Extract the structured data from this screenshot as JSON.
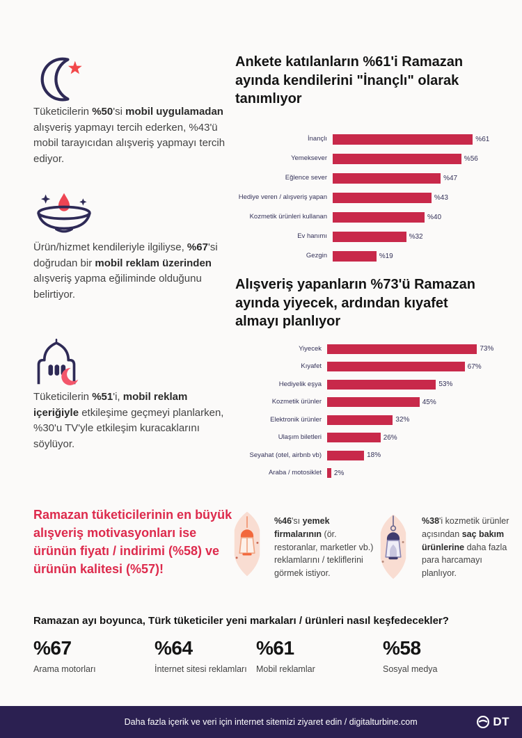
{
  "page": {
    "background": "#fbfaf9",
    "accent_red": "#c8294a",
    "navy": "#2e2a56",
    "highlight_red": "#dd2a4c"
  },
  "left_blocks": [
    {
      "icon": "crescent-star-icon",
      "segments": [
        {
          "text": "Tüketicilerin ",
          "bold": false
        },
        {
          "text": "%50",
          "bold": true
        },
        {
          "text": "'si ",
          "bold": false
        },
        {
          "text": "mobil uygulamadan",
          "bold": true
        },
        {
          "text": " alışveriş yapmayı tercih ederken, %43'ü mobil tarayıcıdan alışveriş yapmayı tercih ediyor.",
          "bold": false
        }
      ]
    },
    {
      "icon": "oil-lamp-icon",
      "segments": [
        {
          "text": "Ürün/hizmet kendileriyle ilgiliyse, ",
          "bold": false
        },
        {
          "text": "%67",
          "bold": true
        },
        {
          "text": "'si doğrudan bir ",
          "bold": false
        },
        {
          "text": "mobil reklam üzerinden",
          "bold": true
        },
        {
          "text": " alışveriş yapma eğiliminde olduğunu belirtiyor.",
          "bold": false
        }
      ]
    },
    {
      "icon": "mosque-icon",
      "segments": [
        {
          "text": "Tüketicilerin ",
          "bold": false
        },
        {
          "text": "%51",
          "bold": true
        },
        {
          "text": "'i, ",
          "bold": false
        },
        {
          "text": "mobil reklam içeriğiyle",
          "bold": true
        },
        {
          "text": " etkileşime geçmeyi planlarken, %30'u TV'yle etkileşim kuracaklarını söylüyor.",
          "bold": false
        }
      ]
    }
  ],
  "highlight": {
    "text": "Ramazan tüketicilerinin en büyük alışveriş motivasyonları ise ürünün fiyatı / indirimi (%58) ve ürünün kalitesi (%57)!"
  },
  "chart_data": [
    {
      "type": "bar",
      "orientation": "horizontal",
      "title": "Ankete katılanların %61'i Ramazan ayında kendilerini \"İnançlı\" olarak tanımlıyor",
      "categories": [
        "İnançlı",
        "Yemeksever",
        "Eğlence sever",
        "Hediye veren / alışveriş yapan",
        "Kozmetik ürünleri kullanan",
        "Ev hanımı",
        "Gezgin"
      ],
      "values": [
        61,
        56,
        47,
        43,
        40,
        32,
        19
      ],
      "value_labels": [
        "%61",
        "%56",
        "%47",
        "%43",
        "%40",
        "%32",
        "%19"
      ],
      "bar_color": "#c8294a",
      "xlim": [
        0,
        80
      ],
      "grid": false,
      "legend": "none"
    },
    {
      "type": "bar",
      "orientation": "horizontal",
      "title": "Alışveriş yapanların %73'ü Ramazan ayında yiyecek, ardından kıyafet almayı planlıyor",
      "categories": [
        "Yiyecek",
        "Kıyafet",
        "Hediyelik eşya",
        "Kozmetik ürünler",
        "Elektronik ürünler",
        "Ulaşım biletleri",
        "Seyahat (otel, airbnb vb)",
        "Araba / motosiklet"
      ],
      "values": [
        73,
        67,
        53,
        45,
        32,
        26,
        18,
        2
      ],
      "value_labels": [
        "73%",
        "67%",
        "53%",
        "45%",
        "32%",
        "26%",
        "18%",
        "2%"
      ],
      "bar_color": "#c8294a",
      "xlim": [
        0,
        90
      ],
      "grid": false,
      "legend": "none"
    }
  ],
  "lantern_notes": [
    {
      "icon": "lantern-orange-icon",
      "segments": [
        {
          "text": "%46",
          "bold": true
        },
        {
          "text": "'sı ",
          "bold": false
        },
        {
          "text": "yemek firmalarının",
          "bold": true
        },
        {
          "text": " (ör. restoranlar, marketler vb.) reklamlarını / tekliflerini görmek istiyor.",
          "bold": false
        }
      ]
    },
    {
      "icon": "lantern-purple-icon",
      "segments": [
        {
          "text": "%38",
          "bold": true
        },
        {
          "text": "'i kozmetik ürünler açısından ",
          "bold": false
        },
        {
          "text": "saç bakım ürünlerine",
          "bold": true
        },
        {
          "text": " daha fazla para harcamayı planlıyor.",
          "bold": false
        }
      ]
    }
  ],
  "discovery": {
    "heading": "Ramazan ayı boyunca, Türk tüketiciler yeni markaları / ürünleri nasıl keşfedecekler?",
    "stats": [
      {
        "value": "%67",
        "label": "Arama motorları"
      },
      {
        "value": "%64",
        "label": "İnternet sitesi reklamları"
      },
      {
        "value": "%61",
        "label": "Mobil reklamlar"
      },
      {
        "value": "%58",
        "label": "Sosyal medya"
      }
    ]
  },
  "footer": {
    "text": "Daha fazla içerik ve veri için internet sitemizi ziyaret edin / digitalturbine.com",
    "logo_text": "DT"
  }
}
